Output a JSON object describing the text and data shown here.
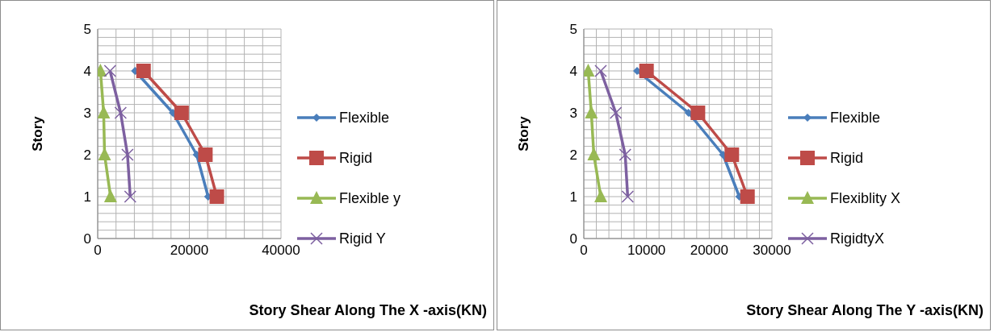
{
  "chart_data": [
    {
      "type": "line",
      "xlabel": "Story Shear Along The X -axis(KN)",
      "ylabel": "Story",
      "xlim": [
        0,
        40000
      ],
      "xticks": [
        0,
        {
          "value": 4000,
          "label": null
        },
        {
          "value": 8000,
          "label": null
        },
        {
          "value": 12000,
          "label": null
        },
        {
          "value": 16000,
          "label": null
        },
        20000,
        {
          "value": 24000,
          "label": null
        },
        {
          "value": 28000,
          "label": null
        },
        {
          "value": 32000,
          "label": null
        },
        {
          "value": 36000,
          "label": null
        },
        40000
      ],
      "ylim": [
        0,
        5
      ],
      "yticks": [
        0,
        {
          "value": 0.2,
          "label": null
        },
        {
          "value": 0.4,
          "label": null
        },
        {
          "value": 0.6,
          "label": null
        },
        {
          "value": 0.8,
          "label": null
        },
        1,
        {
          "value": 1.2,
          "label": null
        },
        {
          "value": 1.4,
          "label": null
        },
        {
          "value": 1.6,
          "label": null
        },
        {
          "value": 1.8,
          "label": null
        },
        2,
        {
          "value": 2.2,
          "label": null
        },
        {
          "value": 2.4,
          "label": null
        },
        {
          "value": 2.6,
          "label": null
        },
        {
          "value": 2.8,
          "label": null
        },
        3,
        {
          "value": 3.2,
          "label": null
        },
        {
          "value": 3.4,
          "label": null
        },
        {
          "value": 3.6,
          "label": null
        },
        {
          "value": 3.8,
          "label": null
        },
        4,
        {
          "value": 4.2,
          "label": null
        },
        {
          "value": 4.4,
          "label": null
        },
        {
          "value": 4.6,
          "label": null
        },
        {
          "value": 4.8,
          "label": null
        },
        5
      ],
      "grid": true,
      "legend": "right",
      "series": [
        {
          "name": "Flexible",
          "color": "#4a7ebb",
          "marker": "diamond",
          "x": [
            24100,
            21600,
            16400,
            8150
          ],
          "values": [
            1,
            2,
            3,
            4
          ]
        },
        {
          "name": "Rigid",
          "color": "#be4b48",
          "marker": "square",
          "x": [
            26000,
            23500,
            18300,
            10000
          ],
          "values": [
            1,
            2,
            3,
            4
          ]
        },
        {
          "name": "Flexible y",
          "color": "#98b954",
          "marker": "triangle",
          "x": [
            2800,
            1500,
            1300,
            600
          ],
          "values": [
            1,
            2,
            3,
            4
          ]
        },
        {
          "name": "Rigid Y",
          "color": "#7d60a0",
          "marker": "cross",
          "x": [
            7100,
            6500,
            5000,
            2700
          ],
          "values": [
            1,
            2,
            3,
            4
          ]
        }
      ]
    },
    {
      "type": "line",
      "xlabel": "Story Shear Along The Y -axis(KN)",
      "ylabel": "Story",
      "xlim": [
        0,
        30000
      ],
      "xticks": [
        0,
        {
          "value": 2000,
          "label": null
        },
        {
          "value": 4000,
          "label": null
        },
        {
          "value": 6000,
          "label": null
        },
        {
          "value": 8000,
          "label": null
        },
        10000,
        {
          "value": 12000,
          "label": null
        },
        {
          "value": 14000,
          "label": null
        },
        {
          "value": 16000,
          "label": null
        },
        {
          "value": 18000,
          "label": null
        },
        20000,
        {
          "value": 22000,
          "label": null
        },
        {
          "value": 24000,
          "label": null
        },
        {
          "value": 26000,
          "label": null
        },
        {
          "value": 28000,
          "label": null
        },
        30000
      ],
      "ylim": [
        0,
        5
      ],
      "yticks": [
        0,
        {
          "value": 0.2,
          "label": null
        },
        {
          "value": 0.4,
          "label": null
        },
        {
          "value": 0.6,
          "label": null
        },
        {
          "value": 0.8,
          "label": null
        },
        1,
        {
          "value": 1.2,
          "label": null
        },
        {
          "value": 1.4,
          "label": null
        },
        {
          "value": 1.6,
          "label": null
        },
        {
          "value": 1.8,
          "label": null
        },
        2,
        {
          "value": 2.2,
          "label": null
        },
        {
          "value": 2.4,
          "label": null
        },
        {
          "value": 2.6,
          "label": null
        },
        {
          "value": 2.8,
          "label": null
        },
        3,
        {
          "value": 3.2,
          "label": null
        },
        {
          "value": 3.4,
          "label": null
        },
        {
          "value": 3.6,
          "label": null
        },
        {
          "value": 3.8,
          "label": null
        },
        4,
        {
          "value": 4.2,
          "label": null
        },
        {
          "value": 4.4,
          "label": null
        },
        {
          "value": 4.6,
          "label": null
        },
        {
          "value": 4.8,
          "label": null
        },
        5
      ],
      "grid": true,
      "legend": "right",
      "series": [
        {
          "name": "Flexible",
          "color": "#4a7ebb",
          "marker": "diamond",
          "x": [
            24800,
            22200,
            16700,
            8500
          ],
          "values": [
            1,
            2,
            3,
            4
          ]
        },
        {
          "name": "Rigid",
          "color": "#be4b48",
          "marker": "square",
          "x": [
            26100,
            23600,
            18200,
            10000
          ],
          "values": [
            1,
            2,
            3,
            4
          ]
        },
        {
          "name": "Flexiblity X",
          "color": "#98b954",
          "marker": "triangle",
          "x": [
            2700,
            1600,
            1200,
            700
          ],
          "values": [
            1,
            2,
            3,
            4
          ]
        },
        {
          "name": "RigidtyX",
          "color": "#7d60a0",
          "marker": "cross",
          "x": [
            7000,
            6600,
            5100,
            2700
          ],
          "values": [
            1,
            2,
            3,
            4
          ]
        }
      ]
    }
  ]
}
